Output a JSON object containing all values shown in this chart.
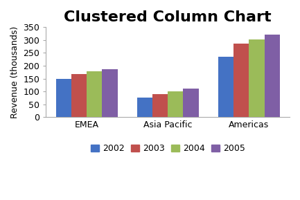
{
  "title": "Clustered Column Chart",
  "categories": [
    "EMEA",
    "Asia Pacific",
    "Americas"
  ],
  "years": [
    "2002",
    "2003",
    "2004",
    "2005"
  ],
  "values": {
    "2002": [
      150,
      77,
      235
    ],
    "2003": [
      168,
      90,
      286
    ],
    "2004": [
      178,
      100,
      302
    ],
    "2005": [
      188,
      111,
      320
    ]
  },
  "colors": {
    "2002": "#4472C4",
    "2003": "#C0504D",
    "2004": "#9BBB59",
    "2005": "#7F5FA5"
  },
  "ylabel": "Revenue (thousands)",
  "ylim": [
    0,
    350
  ],
  "yticks": [
    0,
    50,
    100,
    150,
    200,
    250,
    300,
    350
  ],
  "bar_width": 0.19,
  "background_color": "#FFFFFF",
  "plot_area_color": "#FFFFFF",
  "title_fontsize": 16,
  "axis_fontsize": 9,
  "legend_fontsize": 9,
  "spine_color": "#AAAAAA"
}
